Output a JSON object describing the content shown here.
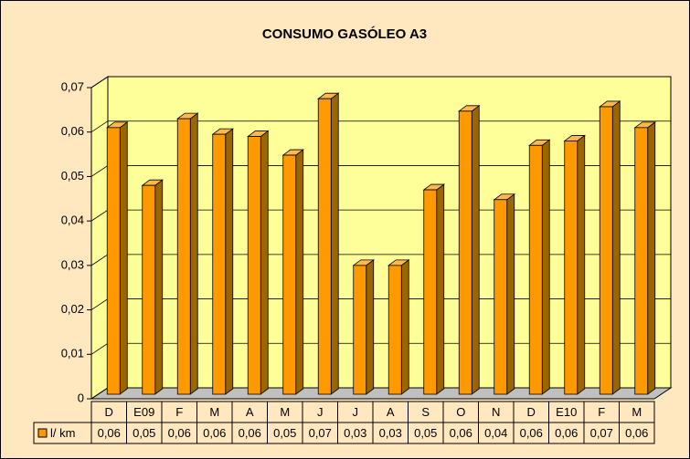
{
  "chart_data": {
    "type": "bar3d",
    "title": "CONSUMO GASÓLEO A3",
    "categories": [
      "D",
      "E09",
      "F",
      "M",
      "A",
      "M",
      "J",
      "J",
      "A",
      "S",
      "O",
      "N",
      "D",
      "E10",
      "F",
      "M"
    ],
    "series": [
      {
        "name": "l/ km",
        "color": "#ff9900",
        "values": [
          0.061,
          0.048,
          0.063,
          0.0595,
          0.059,
          0.0548,
          0.0675,
          0.03,
          0.03,
          0.047,
          0.0647,
          0.0448,
          0.057,
          0.058,
          0.0657,
          0.061
        ],
        "value_labels": [
          "0,06",
          "0,05",
          "0,06",
          "0,06",
          "0,06",
          "0,05",
          "0,07",
          "0,03",
          "0,03",
          "0,05",
          "0,06",
          "0,04",
          "0,06",
          "0,06",
          "0,07",
          "0,06"
        ]
      }
    ],
    "ylim": [
      0,
      0.07
    ],
    "yticks": [
      0,
      {
        "value": 0.01,
        "label": "0,01"
      },
      {
        "value": 0.02,
        "label": "0,02"
      },
      {
        "value": 0.03,
        "label": "0,03"
      },
      {
        "value": 0.04,
        "label": "0,04"
      },
      {
        "value": 0.05,
        "label": "0,05"
      },
      {
        "value": 0.06,
        "label": "0,06"
      },
      {
        "value": 0.07,
        "label": "0,07"
      }
    ],
    "grid": true
  }
}
